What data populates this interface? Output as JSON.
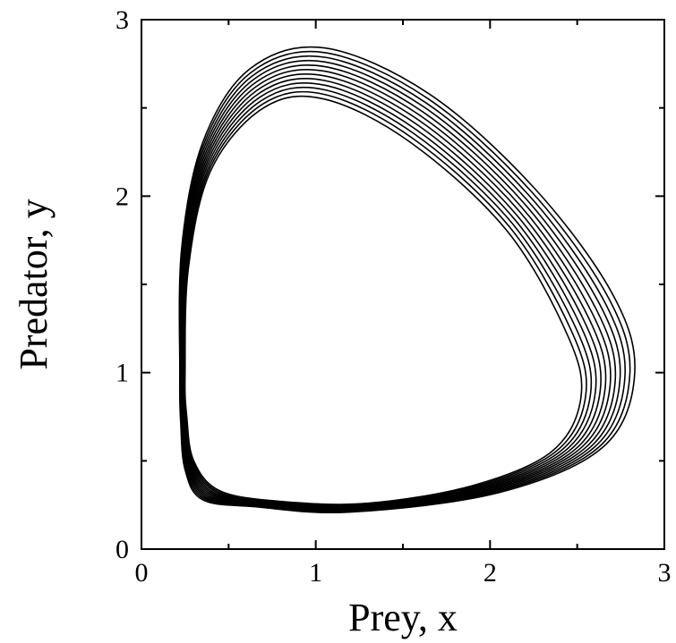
{
  "chart_data": {
    "type": "line",
    "title": "",
    "xlabel": "Prey, x",
    "ylabel": "Predator, y",
    "xlim": [
      0,
      3
    ],
    "ylim": [
      0,
      3
    ],
    "x_ticks": [
      "0",
      "1",
      "2",
      "3"
    ],
    "y_ticks": [
      "0",
      "1",
      "2",
      "3"
    ],
    "grid": false,
    "legend": "none",
    "line_color": "#000000",
    "description": "Predator-prey phase portrait: a band of about 12 nearly closed orbits (a slowly drifting closed trajectory). Innermost orbit reaches x≈0.25–2.52, y≈0.25–2.55; outermost reaches x≈0.22–2.83, y≈0.21–2.84.",
    "series": [
      {
        "values_inner": [
          [
            0.25,
            1.0
          ],
          [
            0.27,
            1.6
          ],
          [
            0.4,
            2.15
          ],
          [
            0.7,
            2.5
          ],
          [
            1.05,
            2.55
          ],
          [
            1.55,
            2.3
          ],
          [
            2.1,
            1.8
          ],
          [
            2.45,
            1.2
          ],
          [
            2.52,
            0.85
          ],
          [
            2.35,
            0.55
          ],
          [
            1.9,
            0.36
          ],
          [
            1.3,
            0.26
          ],
          [
            0.8,
            0.27
          ],
          [
            0.45,
            0.33
          ],
          [
            0.3,
            0.5
          ],
          [
            0.26,
            0.75
          ],
          [
            0.25,
            1.0
          ]
        ],
        "values_outer": [
          [
            0.22,
            1.0
          ],
          [
            0.23,
            1.7
          ],
          [
            0.35,
            2.3
          ],
          [
            0.62,
            2.72
          ],
          [
            1.05,
            2.84
          ],
          [
            1.65,
            2.58
          ],
          [
            2.25,
            2.05
          ],
          [
            2.7,
            1.45
          ],
          [
            2.83,
            1.0
          ],
          [
            2.65,
            0.58
          ],
          [
            2.05,
            0.32
          ],
          [
            1.2,
            0.21
          ],
          [
            0.65,
            0.24
          ],
          [
            0.35,
            0.28
          ],
          [
            0.25,
            0.45
          ],
          [
            0.225,
            0.72
          ],
          [
            0.22,
            1.0
          ]
        ]
      }
    ]
  }
}
